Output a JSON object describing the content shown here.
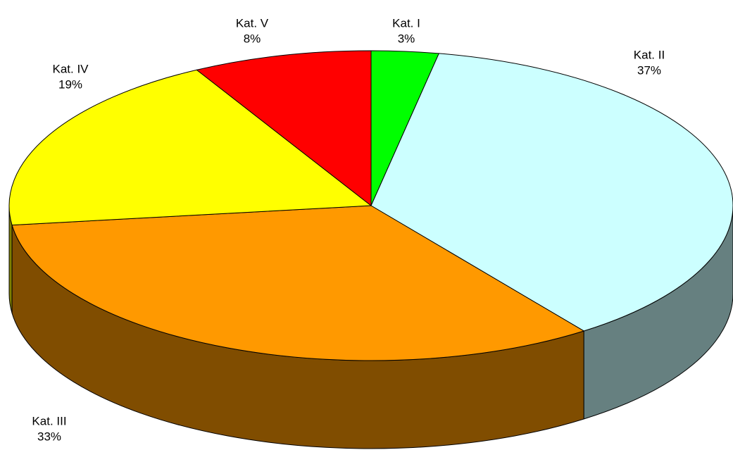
{
  "chart_data": {
    "type": "pie",
    "categories": [
      "Kat. I",
      "Kat. II",
      "Kat. III",
      "Kat. IV",
      "Kat. V"
    ],
    "values": [
      3,
      37,
      33,
      19,
      8
    ],
    "value_labels": [
      "3%",
      "37%",
      "33%",
      "19%",
      "8%"
    ],
    "colors": [
      "#00ff00",
      "#ccffff",
      "#ff9900",
      "#ffff00",
      "#ff0000"
    ]
  }
}
